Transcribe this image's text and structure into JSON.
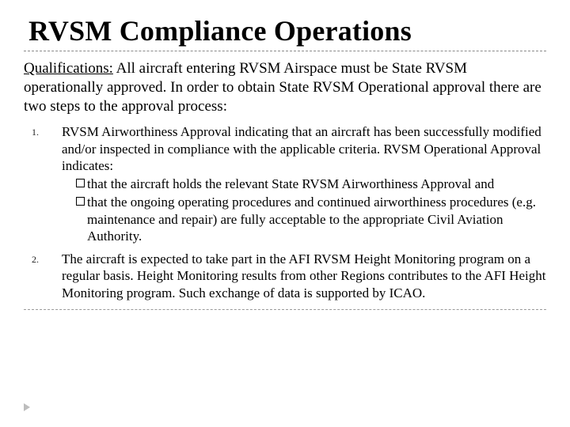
{
  "title": "RVSM Compliance Operations",
  "intro_label": "Qualifications:",
  "intro_body": " All aircraft entering RVSM Airspace must be State RVSM operationally approved. In order to obtain State RVSM Operational approval there are two steps to the approval process:",
  "items": [
    {
      "num": "1.",
      "lead": "RVSM Airworthiness Approval indicating that an aircraft has been successfully modified and/or inspected in compliance with the applicable criteria. RVSM Operational Approval indicates:",
      "subs": [
        "that the aircraft holds the relevant State RVSM Airworthiness Approval and",
        "that the ongoing operating procedures and continued airworthiness procedures (e.g. maintenance and repair) are fully acceptable to the appropriate Civil Aviation Authority."
      ]
    },
    {
      "num": "2.",
      "lead": "The aircraft is expected to take part in the AFI RVSM Height Monitoring program on a regular basis. Height Monitoring results from other Regions contributes to the AFI Height Monitoring program. Such exchange of data is supported by ICAO.",
      "subs": []
    }
  ],
  "colors": {
    "text": "#000000",
    "background": "#ffffff",
    "rule": "#8a8a8a",
    "arrow": "#bdbdbd"
  },
  "fonts": {
    "family": "Times New Roman",
    "title_size_pt": 28,
    "body_size_pt": 15,
    "list_size_pt": 13,
    "num_size_pt": 9
  }
}
